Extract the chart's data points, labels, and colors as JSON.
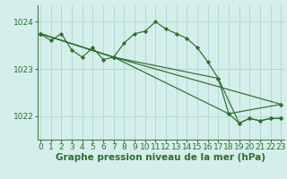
{
  "background_color": "#d4eeec",
  "grid_color": "#b0d4d0",
  "line_color": "#2d6e2d",
  "border_color": "#4a7a4a",
  "ylabel_ticks": [
    1022,
    1023,
    1024
  ],
  "xlabel_ticks": [
    0,
    1,
    2,
    3,
    4,
    5,
    6,
    7,
    8,
    9,
    10,
    11,
    12,
    13,
    14,
    15,
    16,
    17,
    18,
    19,
    20,
    21,
    22,
    23
  ],
  "xlabel": "Graphe pression niveau de la mer (hPa)",
  "series": [
    {
      "x": [
        0,
        1,
        2,
        3,
        4,
        5,
        6,
        7,
        8,
        9,
        10,
        11,
        12,
        13,
        14,
        15,
        16,
        17,
        18,
        19,
        20,
        21,
        22,
        23
      ],
      "y": [
        1023.75,
        1023.6,
        1023.75,
        1023.4,
        1023.25,
        1023.45,
        1023.2,
        1023.25,
        1023.55,
        1023.75,
        1023.8,
        1024.0,
        1023.85,
        1023.75,
        1023.65,
        1023.45,
        1023.15,
        1022.8,
        1022.05,
        1021.85,
        1021.95,
        1021.9,
        1021.95,
        1021.95
      ]
    },
    {
      "x": [
        0,
        7,
        23
      ],
      "y": [
        1023.75,
        1023.25,
        1022.25
      ]
    },
    {
      "x": [
        0,
        7,
        18,
        23
      ],
      "y": [
        1023.75,
        1023.25,
        1022.05,
        1022.25
      ]
    },
    {
      "x": [
        0,
        7,
        17,
        19,
        20,
        21,
        22,
        23
      ],
      "y": [
        1023.75,
        1023.25,
        1022.8,
        1021.85,
        1021.95,
        1021.9,
        1021.95,
        1021.95
      ]
    }
  ],
  "ylim": [
    1021.5,
    1024.35
  ],
  "xlim": [
    -0.3,
    23.3
  ],
  "tick_fontsize": 6.5,
  "xlabel_fontsize": 7.5,
  "marker": "D",
  "markersize": 2.2,
  "linewidth": 0.85
}
